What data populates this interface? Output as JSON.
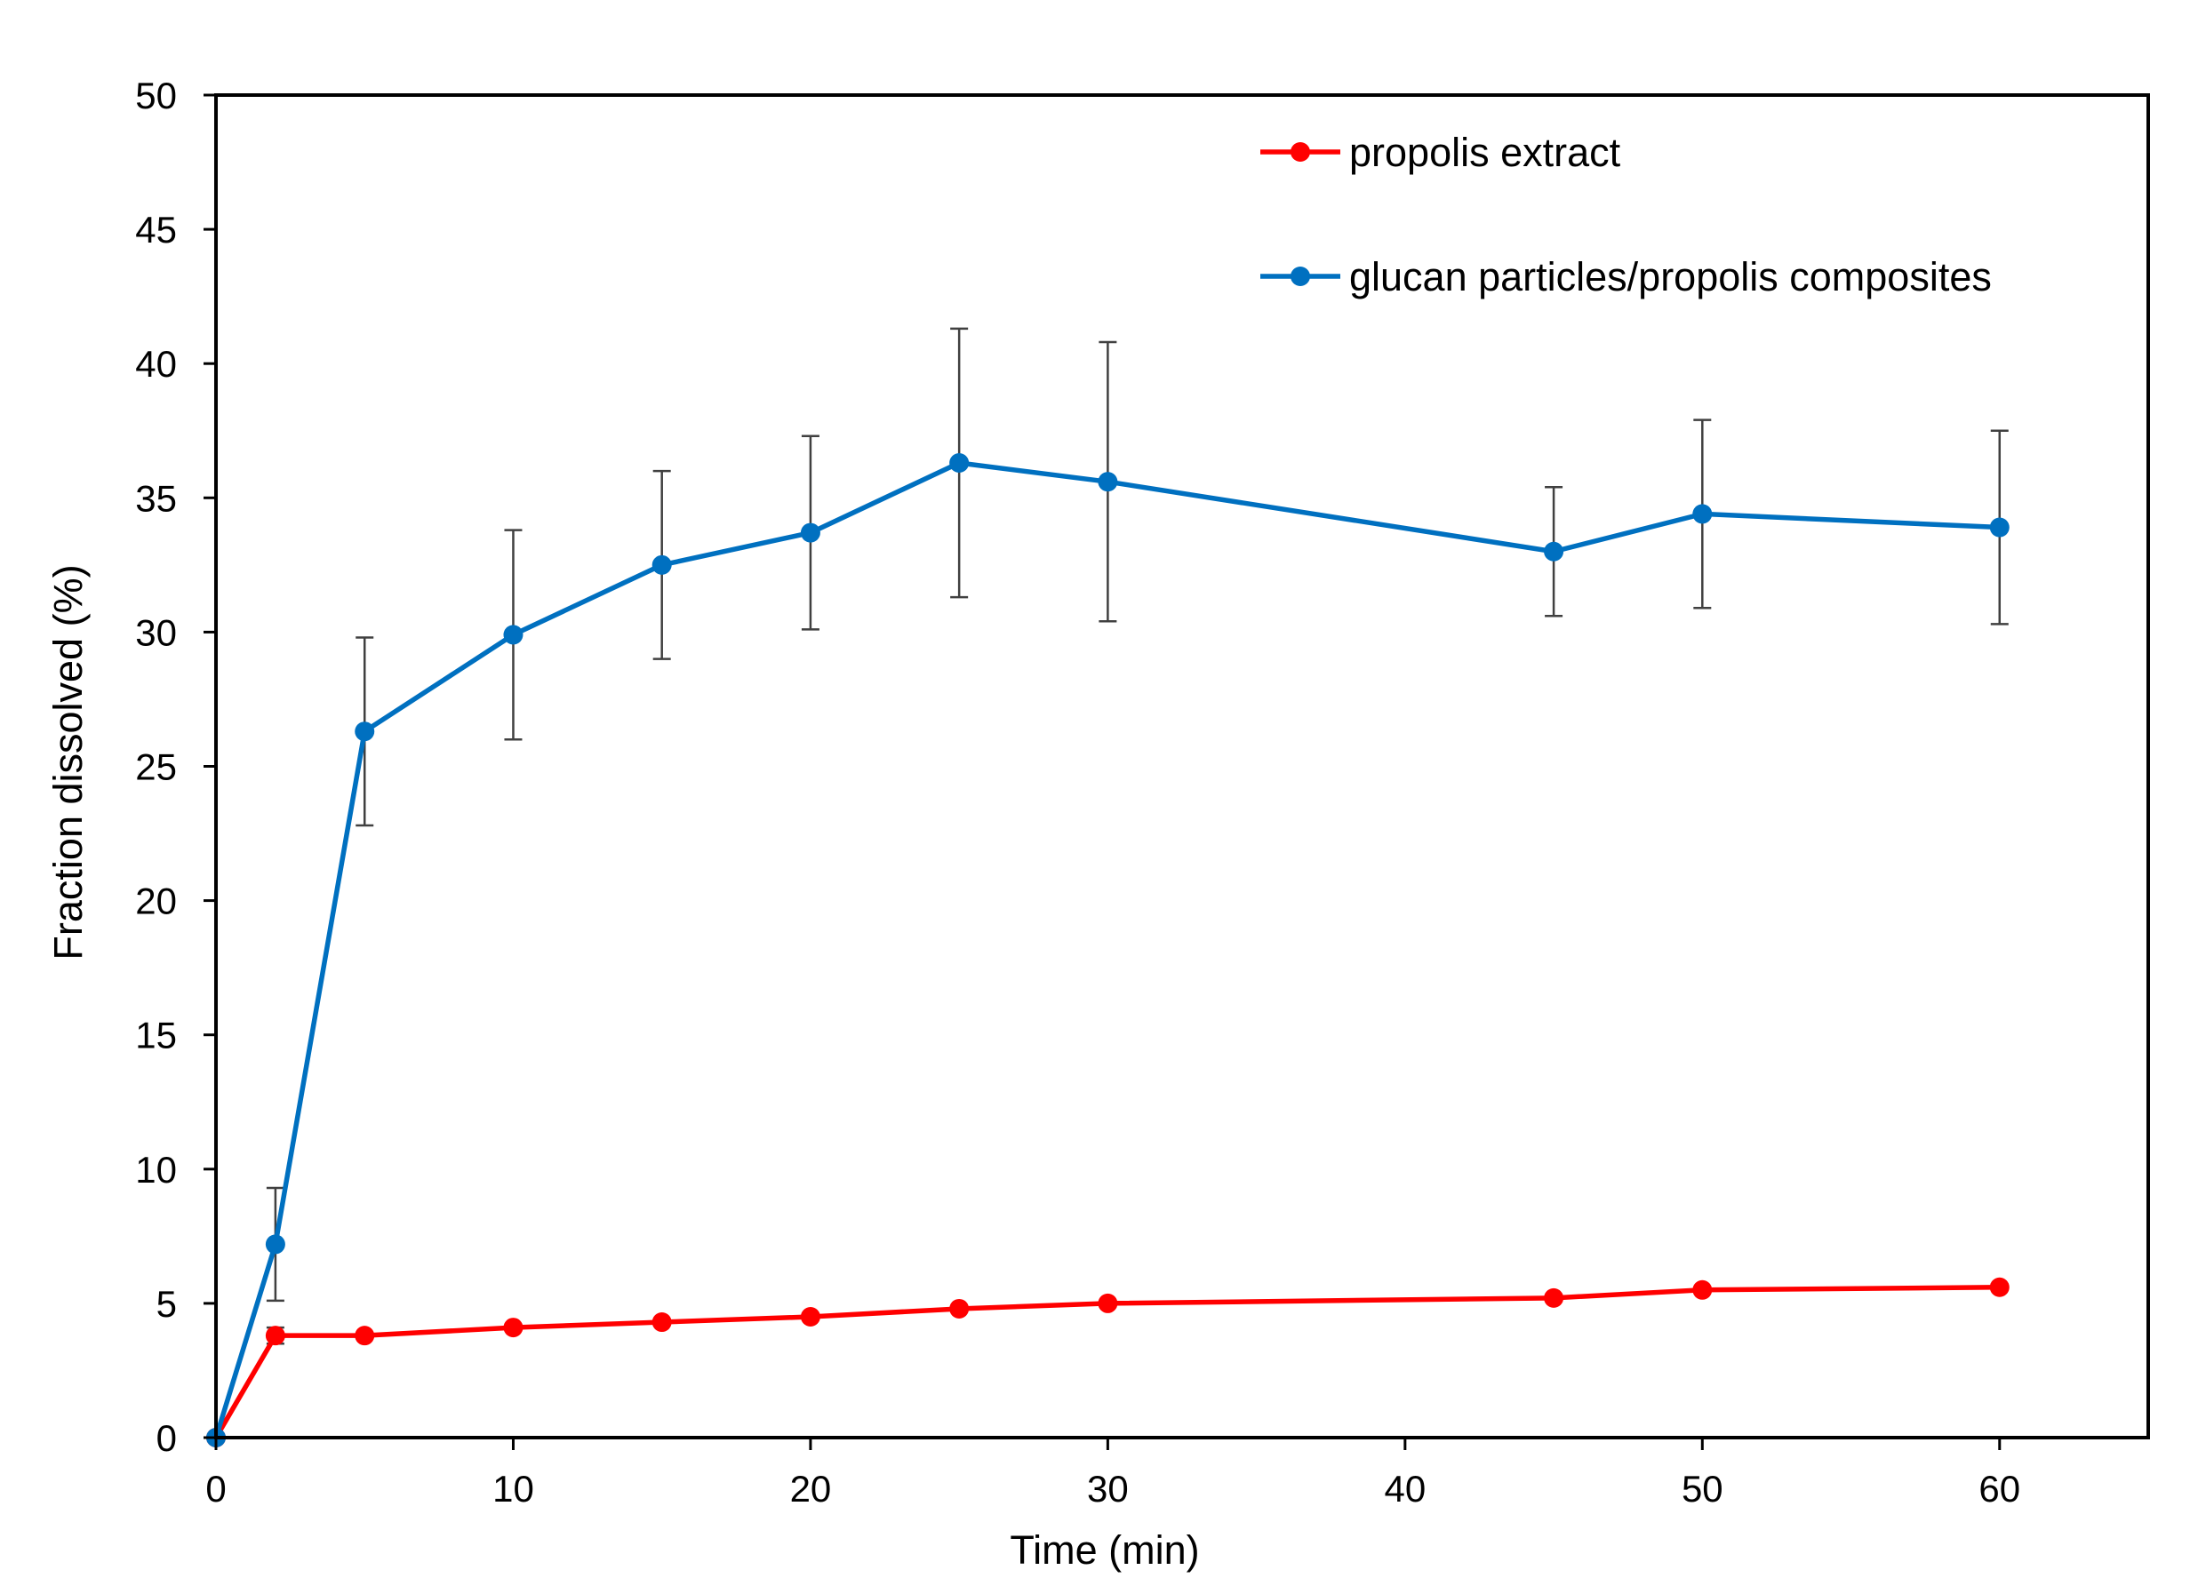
{
  "chart_data": {
    "type": "line",
    "xlabel": "Time (min)",
    "ylabel": "Fraction dissolved (%)",
    "xlim": [
      0,
      65
    ],
    "ylim": [
      0,
      50
    ],
    "xticks": [
      0,
      10,
      20,
      30,
      40,
      50,
      60
    ],
    "yticks": [
      0,
      5,
      10,
      15,
      20,
      25,
      30,
      35,
      40,
      45,
      50
    ],
    "grid": false,
    "legend_position": "top-right",
    "series": [
      {
        "name": "propolis extract",
        "color": "#ff0000",
        "marker": "circle",
        "x": [
          0,
          2,
          5,
          10,
          15,
          20,
          25,
          30,
          45,
          50,
          60
        ],
        "y": [
          0,
          3.8,
          3.8,
          4.1,
          4.3,
          4.5,
          4.8,
          5.0,
          5.2,
          5.5,
          5.6
        ],
        "error": [
          0,
          0.3,
          0,
          0,
          0,
          0,
          0,
          0,
          0,
          0,
          0
        ]
      },
      {
        "name": "glucan particles/propolis composites",
        "color": "#0070c0",
        "marker": "circle",
        "x": [
          0,
          2,
          5,
          10,
          15,
          20,
          25,
          30,
          45,
          50,
          60
        ],
        "y": [
          0,
          7.2,
          26.3,
          29.9,
          32.5,
          33.7,
          36.3,
          35.6,
          33.0,
          34.4,
          33.9
        ],
        "error": [
          0,
          2.1,
          3.5,
          3.9,
          3.5,
          3.6,
          5.0,
          5.2,
          2.4,
          3.5,
          3.6
        ]
      }
    ]
  }
}
